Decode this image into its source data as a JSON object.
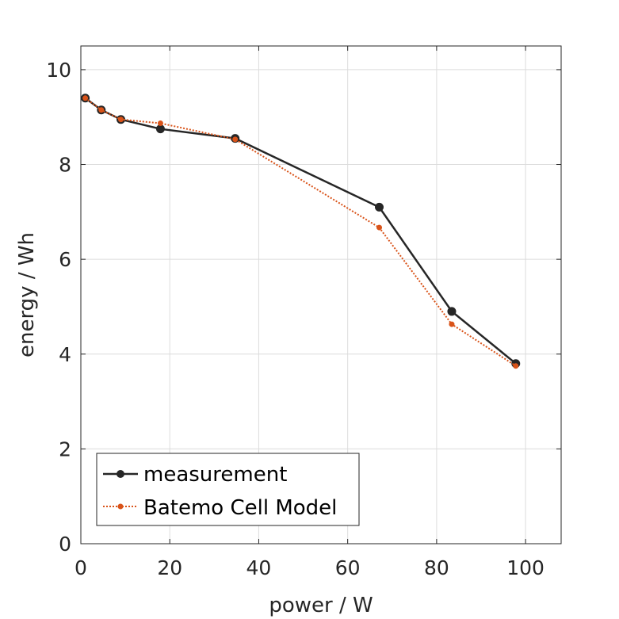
{
  "chart_data": {
    "type": "line",
    "title": "",
    "xlabel": "power / W",
    "ylabel": "energy / Wh",
    "xlim": [
      0,
      108
    ],
    "ylim": [
      0,
      10.5
    ],
    "xticks": [
      0,
      20,
      40,
      60,
      80,
      100
    ],
    "yticks": [
      0,
      2,
      4,
      6,
      8,
      10
    ],
    "grid": true,
    "legend_position": "bottom-left",
    "series": [
      {
        "name": "measurement",
        "color": "#262626",
        "line_style": "solid",
        "marker": "filled-circle",
        "x": [
          1,
          4.6,
          9,
          17.9,
          34.7,
          67.1,
          83.4,
          97.8
        ],
        "y": [
          9.4,
          9.15,
          8.95,
          8.75,
          8.55,
          7.1,
          4.9,
          3.8
        ]
      },
      {
        "name": "Batemo Cell Model",
        "color": "#d95319",
        "line_style": "dotted",
        "marker": "small-filled-circle",
        "x": [
          1,
          4.6,
          9,
          17.9,
          34.7,
          67.1,
          83.4,
          97.8
        ],
        "y": [
          9.4,
          9.15,
          8.95,
          8.87,
          8.53,
          6.67,
          4.63,
          3.75
        ]
      }
    ]
  }
}
